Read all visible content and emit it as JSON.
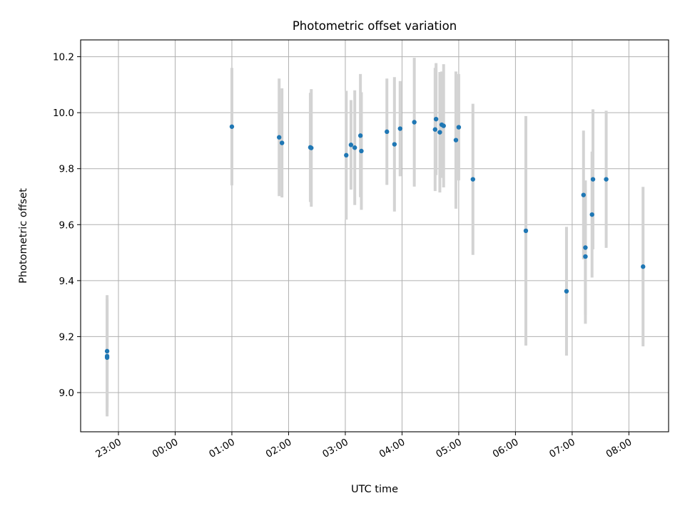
{
  "chart_data": {
    "type": "scatter",
    "title": "Photometric offset variation",
    "xlabel": "UTC time",
    "ylabel": "Photometric offset",
    "x_unit": "UTC time (HH:MM), day 1 starts after 23:00 on day 0",
    "xlim": [
      "22:20",
      "08:42"
    ],
    "ylim": [
      8.86,
      10.26
    ],
    "x_ticks": [
      "23:00",
      "00:00",
      "01:00",
      "02:00",
      "03:00",
      "04:00",
      "05:00",
      "06:00",
      "07:00",
      "08:00"
    ],
    "y_ticks": [
      9.0,
      9.2,
      9.4,
      9.6,
      9.8,
      10.0,
      10.2
    ],
    "y_tick_labels": [
      "9.0",
      "9.2",
      "9.4",
      "9.6",
      "9.8",
      "10.0",
      "10.2"
    ],
    "grid": true,
    "legend": "none",
    "colors": {
      "point": "#1f77b4",
      "errorbar": "#d3d3d3",
      "grid": "#b0b0b0"
    },
    "points": [
      {
        "x": "22:48",
        "y": 9.148,
        "err": 0.2
      },
      {
        "x": "22:48",
        "y": 9.13,
        "err": 0.2
      },
      {
        "x": "22:48",
        "y": 9.125,
        "err": 0.21
      },
      {
        "x": "01:00",
        "y": 9.95,
        "err": 0.21
      },
      {
        "x": "01:50",
        "y": 9.912,
        "err": 0.21
      },
      {
        "x": "01:53",
        "y": 9.892,
        "err": 0.195
      },
      {
        "x": "02:23",
        "y": 9.876,
        "err": 0.195
      },
      {
        "x": "02:24",
        "y": 9.874,
        "err": 0.21
      },
      {
        "x": "03:01",
        "y": 9.848,
        "err": 0.23
      },
      {
        "x": "03:06",
        "y": 9.885,
        "err": 0.16
      },
      {
        "x": "03:10",
        "y": 9.875,
        "err": 0.205
      },
      {
        "x": "03:16",
        "y": 9.918,
        "err": 0.22
      },
      {
        "x": "03:17",
        "y": 9.863,
        "err": 0.21
      },
      {
        "x": "03:44",
        "y": 9.932,
        "err": 0.19
      },
      {
        "x": "03:52",
        "y": 9.887,
        "err": 0.24
      },
      {
        "x": "03:58",
        "y": 9.943,
        "err": 0.17
      },
      {
        "x": "04:13",
        "y": 9.966,
        "err": 0.23
      },
      {
        "x": "04:35",
        "y": 9.94,
        "err": 0.22
      },
      {
        "x": "04:36",
        "y": 9.977,
        "err": 0.2
      },
      {
        "x": "04:40",
        "y": 9.93,
        "err": 0.215
      },
      {
        "x": "04:42",
        "y": 9.957,
        "err": 0.19
      },
      {
        "x": "04:44",
        "y": 9.953,
        "err": 0.22
      },
      {
        "x": "04:57",
        "y": 9.902,
        "err": 0.245
      },
      {
        "x": "05:00",
        "y": 9.948,
        "err": 0.19
      },
      {
        "x": "05:15",
        "y": 9.762,
        "err": 0.27
      },
      {
        "x": "06:11",
        "y": 9.578,
        "err": 0.41
      },
      {
        "x": "06:54",
        "y": 9.362,
        "err": 0.23
      },
      {
        "x": "07:12",
        "y": 9.706,
        "err": 0.23
      },
      {
        "x": "07:14",
        "y": 9.518,
        "err": 0.24
      },
      {
        "x": "07:14",
        "y": 9.486,
        "err": 0.24
      },
      {
        "x": "07:21",
        "y": 9.636,
        "err": 0.225
      },
      {
        "x": "07:22",
        "y": 9.762,
        "err": 0.25
      },
      {
        "x": "07:36",
        "y": 9.762,
        "err": 0.245
      },
      {
        "x": "08:15",
        "y": 9.45,
        "err": 0.285
      }
    ]
  }
}
